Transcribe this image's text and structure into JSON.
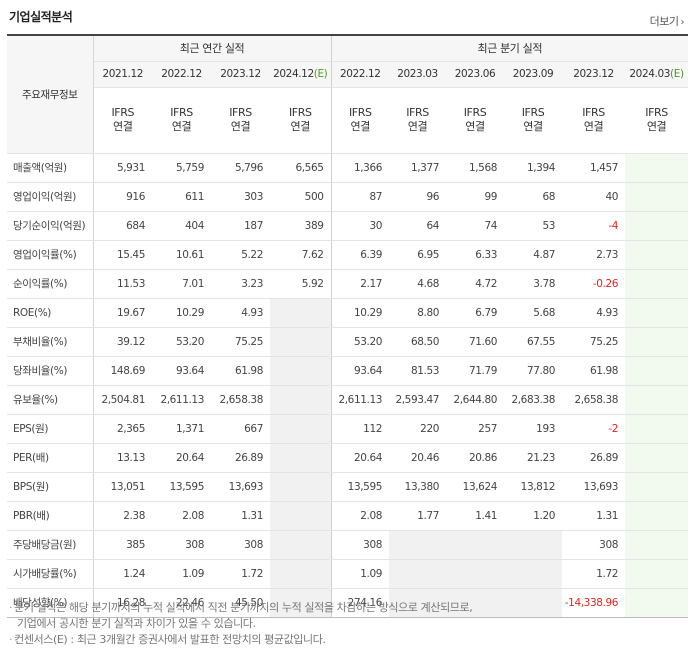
{
  "section": {
    "title": "기업실적분석",
    "more_label": "더보기"
  },
  "table": {
    "row_header_label": "주요재무정보",
    "annual_group_label": "최근 연간 실적",
    "quarter_group_label": "최근 분기 실적",
    "annual_periods": [
      "2021.12",
      "2022.12",
      "2023.12",
      "2024.12"
    ],
    "annual_est_suffix": "(E)",
    "quarter_periods": [
      "2022.12",
      "2023.03",
      "2023.06",
      "2023.09",
      "2023.12",
      "2024.03"
    ],
    "quarter_est_suffix": "(E)",
    "ifrs_line1": "IFRS",
    "ifrs_line2": "연결",
    "rows": [
      {
        "label": "매출액(억원)",
        "annual": [
          "5,931",
          "5,759",
          "5,796",
          "6,565"
        ],
        "quarter": [
          "1,366",
          "1,377",
          "1,568",
          "1,394",
          "1,457",
          ""
        ]
      },
      {
        "label": "영업이익(억원)",
        "annual": [
          "916",
          "611",
          "303",
          "500"
        ],
        "quarter": [
          "87",
          "96",
          "99",
          "68",
          "40",
          ""
        ]
      },
      {
        "label": "당기순이익(억원)",
        "annual": [
          "684",
          "404",
          "187",
          "389"
        ],
        "quarter": [
          "30",
          "64",
          "74",
          "53",
          "-4",
          ""
        ]
      },
      {
        "label": "영업이익률(%)",
        "annual": [
          "15.45",
          "10.61",
          "5.22",
          "7.62"
        ],
        "quarter": [
          "6.39",
          "6.95",
          "6.33",
          "4.87",
          "2.73",
          ""
        ]
      },
      {
        "label": "순이익률(%)",
        "annual": [
          "11.53",
          "7.01",
          "3.23",
          "5.92"
        ],
        "quarter": [
          "2.17",
          "4.68",
          "4.72",
          "3.78",
          "-0.26",
          ""
        ]
      },
      {
        "label": "ROE(%)",
        "annual": [
          "19.67",
          "10.29",
          "4.93",
          ""
        ],
        "quarter": [
          "10.29",
          "8.80",
          "6.79",
          "5.68",
          "4.93",
          ""
        ]
      },
      {
        "label": "부채비율(%)",
        "annual": [
          "39.12",
          "53.20",
          "75.25",
          ""
        ],
        "quarter": [
          "53.20",
          "68.50",
          "71.60",
          "67.55",
          "75.25",
          ""
        ]
      },
      {
        "label": "당좌비율(%)",
        "annual": [
          "148.69",
          "93.64",
          "61.98",
          ""
        ],
        "quarter": [
          "93.64",
          "81.53",
          "71.79",
          "77.80",
          "61.98",
          ""
        ]
      },
      {
        "label": "유보율(%)",
        "annual": [
          "2,504.81",
          "2,611.13",
          "2,658.38",
          ""
        ],
        "quarter": [
          "2,611.13",
          "2,593.47",
          "2,644.80",
          "2,683.38",
          "2,658.38",
          ""
        ]
      },
      {
        "label": "EPS(원)",
        "annual": [
          "2,365",
          "1,371",
          "667",
          ""
        ],
        "quarter": [
          "112",
          "220",
          "257",
          "193",
          "-2",
          ""
        ]
      },
      {
        "label": "PER(배)",
        "annual": [
          "13.13",
          "20.64",
          "26.89",
          ""
        ],
        "quarter": [
          "20.64",
          "20.46",
          "20.86",
          "21.23",
          "26.89",
          ""
        ]
      },
      {
        "label": "BPS(원)",
        "annual": [
          "13,051",
          "13,595",
          "13,693",
          ""
        ],
        "quarter": [
          "13,595",
          "13,380",
          "13,624",
          "13,812",
          "13,693",
          ""
        ]
      },
      {
        "label": "PBR(배)",
        "annual": [
          "2.38",
          "2.08",
          "1.31",
          ""
        ],
        "quarter": [
          "2.08",
          "1.77",
          "1.41",
          "1.20",
          "1.31",
          ""
        ]
      },
      {
        "label": "주당배당금(원)",
        "annual": [
          "385",
          "308",
          "308",
          ""
        ],
        "quarter": [
          "308",
          "",
          "",
          "",
          "308",
          ""
        ]
      },
      {
        "label": "시가배당률(%)",
        "annual": [
          "1.24",
          "1.09",
          "1.72",
          ""
        ],
        "quarter": [
          "1.09",
          "",
          "",
          "",
          "1.72",
          ""
        ]
      },
      {
        "label": "배당성향(%)",
        "annual": [
          "16.28",
          "22.46",
          "45.50",
          ""
        ],
        "quarter": [
          "274.16",
          "",
          "",
          "",
          "-14,338.96",
          ""
        ]
      }
    ]
  },
  "notes": {
    "line1": "분기 실적은 해당 분기까지의 누적 실적에서 직전 분기까지의 누적 실적을 차감하는 방식으로 계산되므로,",
    "line2": "기업에서 공시한 분기 실적과 차이가 있을 수 있습니다.",
    "line3": "컨센서스(E) : 최근 3개월간 증권사에서 발표한 전망치의 평균값입니다."
  },
  "colors": {
    "ifrs": "#e05a17",
    "estimate": "#4c9a2a",
    "negative": "#e3241b",
    "latest_bg": "#f2f9ee",
    "empty_bg": "#f1f1f1"
  }
}
